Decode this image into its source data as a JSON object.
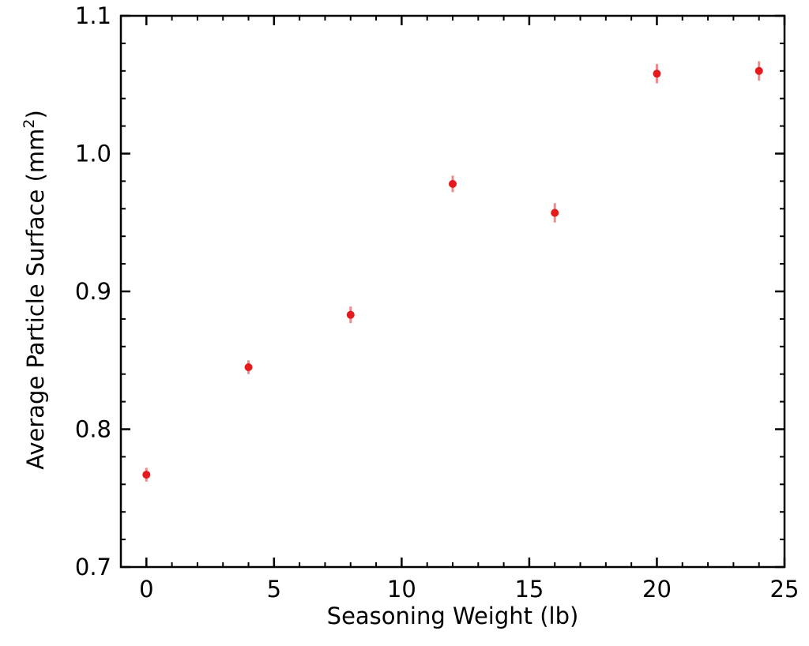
{
  "chart_data": {
    "type": "scatter",
    "title": "",
    "xlabel": "Seasoning Weight (lb)",
    "ylabel_main": "Average Particle Surface (mm",
    "ylabel_sup": "2",
    "ylabel_close": ")",
    "xlim": [
      -1,
      25
    ],
    "ylim": [
      0.7,
      1.1
    ],
    "xticks": [
      0,
      5,
      10,
      15,
      20,
      25
    ],
    "xtick_labels": [
      "0",
      "5",
      "10",
      "15",
      "20",
      "25"
    ],
    "yticks": [
      0.7,
      0.8,
      0.9,
      1.0,
      1.1
    ],
    "ytick_labels": [
      "0.7",
      "0.8",
      "0.9",
      "1.0",
      "1.1"
    ],
    "x_minor_step": 1,
    "y_minor_step": 0.02,
    "grid": false,
    "marker_color": "#e41a1c",
    "errorbar_color": "#f08a8a",
    "points": [
      {
        "x": 0,
        "y": 0.767,
        "err": 0.005
      },
      {
        "x": 4,
        "y": 0.845,
        "err": 0.005
      },
      {
        "x": 8,
        "y": 0.883,
        "err": 0.006
      },
      {
        "x": 12,
        "y": 0.978,
        "err": 0.006
      },
      {
        "x": 16,
        "y": 0.957,
        "err": 0.007
      },
      {
        "x": 20,
        "y": 1.058,
        "err": 0.007
      },
      {
        "x": 24,
        "y": 1.06,
        "err": 0.007
      }
    ]
  }
}
